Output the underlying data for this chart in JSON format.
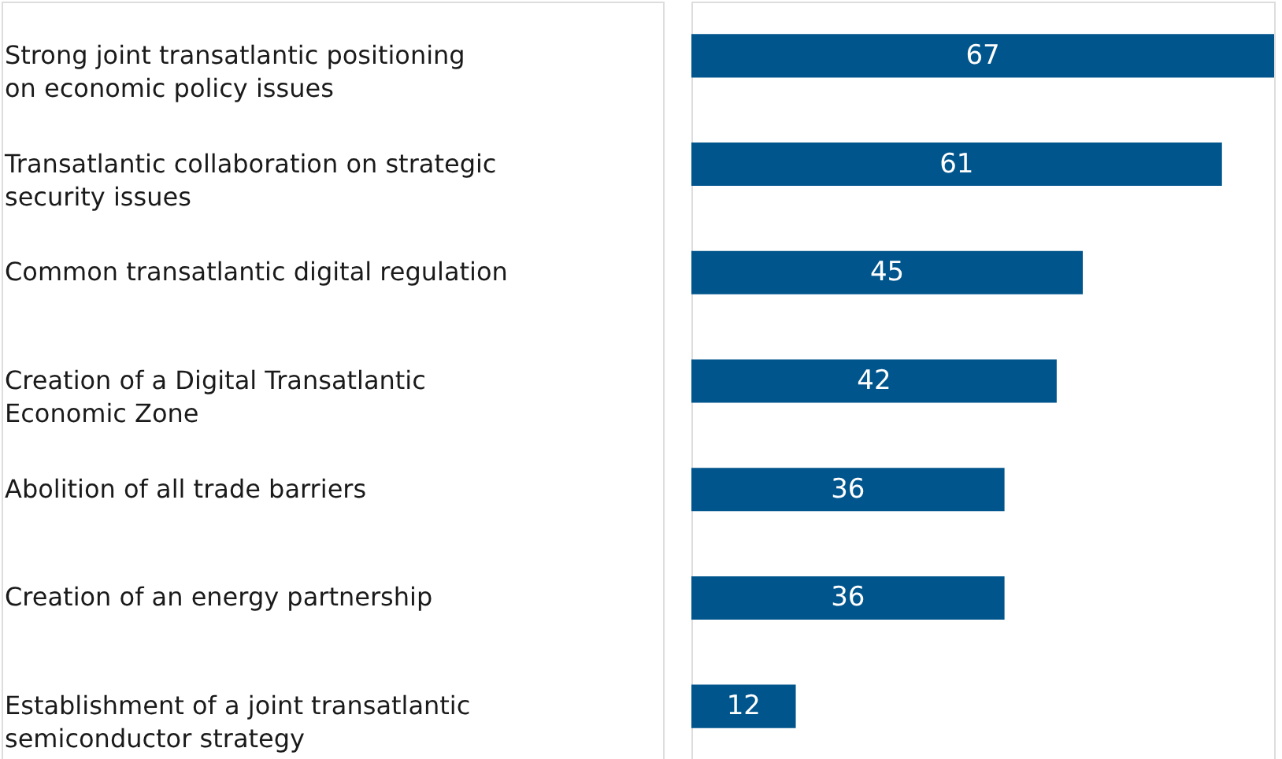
{
  "chart_data": {
    "type": "bar",
    "orientation": "horizontal",
    "data_labels": true,
    "categories": [
      "Strong joint transatlantic positioning on economic policy issues",
      "Transatlantic collaboration on strategic security issues",
      "Common transatlantic digital regulation",
      "Creation of a Digital Transatlantic Economic Zone",
      "Abolition of all trade barriers",
      "Creation of an energy partnership",
      "Establishment of a joint transatlantic semiconductor strategy"
    ],
    "values": [
      67,
      61,
      45,
      42,
      36,
      36,
      12
    ],
    "color": "#00558c"
  }
}
